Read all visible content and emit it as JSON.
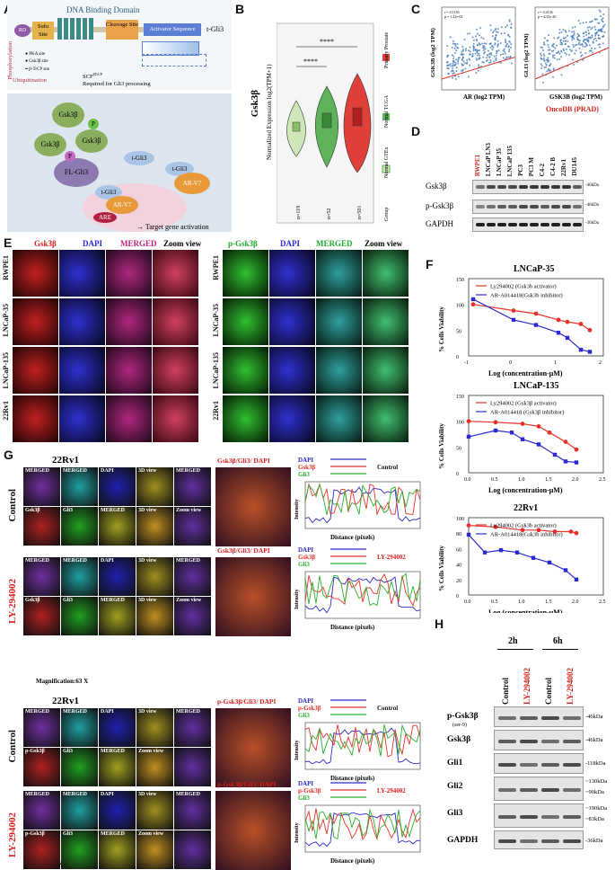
{
  "panels": {
    "A": "A",
    "B": "B",
    "C": "C",
    "D": "D",
    "E": "E",
    "F": "F",
    "G": "G",
    "H": "H"
  },
  "A": {
    "dbd": "DNA Binding Domain",
    "rd": "RD",
    "sufu": "Sufu Site",
    "cleavage": "Cleavage Site",
    "activator": "Activator Sequence",
    "tgli3": "t-Gli3",
    "phos": "Phosphorylation",
    "pka": "PKA site",
    "gsk": "Gsk3β site",
    "btrcp": "β-TrCP site",
    "ubiq": "Ubiquitination",
    "scf": "SCF",
    "scf_sup": "βTrCP",
    "required": "Required for Gli3 processing",
    "gsk3b": "Gsk3β",
    "p": "P",
    "fl": "FL-Gli3",
    "tgli3b": "t-Gli3",
    "arv7": "AR-V7",
    "are": "ARE",
    "target": "Target gene activation"
  },
  "B": {
    "title": "Gsk3β",
    "ylabel": "Normalized Expression log2(TPM+1)",
    "sig": "****",
    "legend": [
      "Primary Prostate",
      "Normal TCGA",
      "Normal GTEx",
      "Group"
    ],
    "ns": [
      "n=119",
      "n=52",
      "n=501"
    ],
    "yticks": [
      "0",
      "2",
      "4",
      "6"
    ]
  },
  "C": {
    "plot1": {
      "ylabel": "GSK3B (log2 TPM)",
      "xlabel": "AR (log2 TPM)",
      "stat1": "r = 0.1156",
      "stat2": "p = 1.41e-02"
    },
    "plot2": {
      "ylabel": "GLI3 (log2 TPM)",
      "xlabel": "GSK3B (log2 TPM)",
      "stat1": "r = 0.4136",
      "stat2": "p = 4.35e-20"
    },
    "source": "OncoDB (PRAD)"
  },
  "D": {
    "lanes": [
      "RWPE1",
      "LNCaP LN3",
      "LNCaP 35",
      "LNCaP 135",
      "PC3",
      "PC3 M",
      "C4-2",
      "C4-2 B",
      "22Rv1",
      "DU145"
    ],
    "rows": [
      {
        "label": "Gsk3β",
        "kda": "-46kDa"
      },
      {
        "label": "p-Gsk3β",
        "kda": "-46kDa"
      },
      {
        "label": "GAPDH",
        "kda": "-36kDa"
      }
    ]
  },
  "E": {
    "cols_left": [
      "Gsk3β",
      "DAPI",
      "MERGED",
      "Zoom view"
    ],
    "cols_right": [
      "p-Gsk3β",
      "DAPI",
      "MERGED",
      "Zoom view"
    ],
    "rows": [
      "RWPE1",
      "LNCaP-35",
      "LNCaP-135",
      "22Rv1"
    ]
  },
  "F": {
    "ylabel": "% Cells Viability",
    "xlabel": "Log (concentration-μM)",
    "charts": [
      {
        "title": "LNCaP-35",
        "legend": [
          "Ly294002 (Gsk3b activator)",
          "AR-A014418(Gsk3b inhibitor)"
        ]
      },
      {
        "title": "LNCaP-135",
        "legend": [
          "Ly294002 (Gsk3β activator)",
          "AR-A014418 (Gsk3β inhibitor)"
        ]
      },
      {
        "title": "22Rv1",
        "legend": [
          "Ly294002 (Gsk3b activator)",
          "AR-A014418(Gsk3b inhibitor)"
        ]
      }
    ]
  },
  "G": {
    "cell": "22Rv1",
    "cols": [
      "MERGED",
      "MERGED",
      "DAPI",
      "3D view",
      "MERGED"
    ],
    "cols2": [
      "Gsk3β",
      "Gli3",
      "MERGED",
      "3D view",
      "Zoom view"
    ],
    "cols_p": [
      "p-Gsk3β",
      "Gli3",
      "MERGED",
      "Zoom view"
    ],
    "zoom_t": "Gsk3β/Gli3/ DAPI",
    "zoom_tp": "p-Gsk3β/Gli3/ DAPI",
    "control": "Control",
    "ly": "LY-294002",
    "mag": "Magnification:63 X",
    "legend": [
      "DAPI",
      "Gsk3β",
      "Gli3"
    ],
    "legend_p": [
      "DAPI",
      "p-Gsk3β",
      "Gli3"
    ],
    "ylabel": "Intensity",
    "xlabel": "Distance (pixels)",
    "cond": [
      "Control",
      "LY-294002",
      "Control",
      "LY-294002"
    ]
  },
  "H": {
    "times": [
      "2h",
      "6h"
    ],
    "lanes": [
      "Control",
      "LY-294002",
      "Control",
      "LY-294002"
    ],
    "rows": [
      {
        "label": "p-Gsk3β",
        "sub": "(ser-9)",
        "kda": "-46kDa"
      },
      {
        "label": "Gsk3β",
        "kda": "-46kDa"
      },
      {
        "label": "Gli1",
        "kda": "-118kDa"
      },
      {
        "label": "Gli2",
        "kda": "~130kDa",
        "kda2": "~90kDa"
      },
      {
        "label": "Gli3",
        "kda": "~190kDa",
        "kda2": "~83kDa"
      },
      {
        "label": "GAPDH",
        "kda": "-36kDa"
      }
    ]
  },
  "chart_data": [
    {
      "type": "line",
      "title": "LNCaP-35",
      "xlabel": "Log (concentration-μM)",
      "ylabel": "% Cells Viability",
      "xlim": [
        -1,
        2
      ],
      "ylim": [
        0,
        150
      ],
      "series": [
        {
          "name": "Ly294002 (Gsk3b activator)",
          "x": [
            -0.9,
            0,
            0.5,
            1,
            1.2,
            1.5,
            1.7
          ],
          "values": [
            100,
            88,
            82,
            70,
            66,
            62,
            50
          ]
        },
        {
          "name": "AR-A014418(Gsk3b inhibitor)",
          "x": [
            -0.9,
            0,
            0.5,
            1,
            1.2,
            1.5,
            1.7
          ],
          "values": [
            110,
            70,
            60,
            45,
            35,
            12,
            8
          ]
        }
      ]
    },
    {
      "type": "line",
      "title": "LNCaP-135",
      "xlabel": "Log (concentration-μM)",
      "ylabel": "% Cells Viability",
      "xlim": [
        0,
        2.5
      ],
      "ylim": [
        0,
        150
      ],
      "series": [
        {
          "name": "Ly294002 (Gsk3β activator)",
          "x": [
            0,
            0.5,
            1,
            1.3,
            1.5,
            1.8,
            2
          ],
          "values": [
            100,
            98,
            95,
            90,
            78,
            60,
            45
          ]
        },
        {
          "name": "AR-A014418 (Gsk3β inhibitor)",
          "x": [
            0,
            0.5,
            0.8,
            1,
            1.3,
            1.6,
            1.8,
            2
          ],
          "values": [
            70,
            82,
            78,
            65,
            55,
            35,
            22,
            20
          ]
        }
      ]
    },
    {
      "type": "line",
      "title": "22Rv1",
      "xlabel": "Log (concentration-μM)",
      "ylabel": "% Cells Viability",
      "xlim": [
        0,
        2.5
      ],
      "ylim": [
        0,
        100
      ],
      "series": [
        {
          "name": "Ly294002 (Gsk3b activator)",
          "x": [
            0,
            0.5,
            1,
            1.3,
            1.6,
            1.9,
            2
          ],
          "values": [
            90,
            88,
            84,
            84,
            82,
            82,
            80
          ]
        },
        {
          "name": "AR-A014418(Gsk3b inhibitor)",
          "x": [
            0,
            0.3,
            0.6,
            0.9,
            1.2,
            1.5,
            1.8,
            2
          ],
          "values": [
            78,
            55,
            58,
            55,
            48,
            42,
            32,
            20
          ]
        }
      ]
    }
  ]
}
